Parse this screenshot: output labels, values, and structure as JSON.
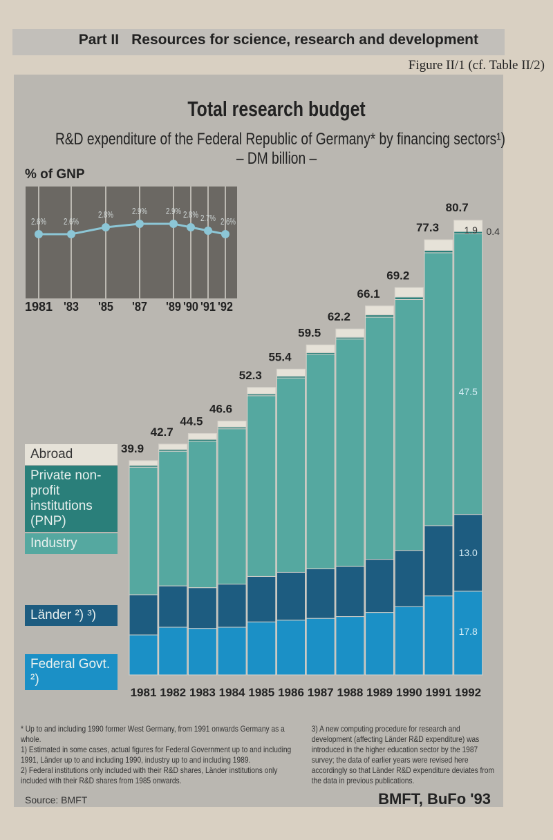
{
  "header": {
    "part": "Part II",
    "section": "Resources for science, research and development",
    "figure": "Figure II/1 (cf. Table II/2)"
  },
  "title": "Total research budget",
  "subtitle_line1": "R&D expenditure of the Federal Republic of Germany* by financing sectors¹)",
  "subtitle_line2": "– DM billion –",
  "colors": {
    "abroad": "#e6e2d8",
    "pnp": "#2a7f7a",
    "industry": "#55a8a0",
    "laender": "#1d5c80",
    "federal": "#1b90c6",
    "gnp_line": "#8cc6d6",
    "gnp_bg": "#6b6863"
  },
  "legend": {
    "abroad": "Abroad",
    "pnp": "Private non-profit institutions (PNP)",
    "industry": "Industry",
    "laender": "Länder ²) ³)",
    "federal": "Federal Govt. ²)"
  },
  "chart_data": [
    {
      "type": "line",
      "title": "% of GNP",
      "categories": [
        "1981",
        "'83",
        "'85",
        "'87",
        "'89",
        "'90",
        "'91",
        "'92"
      ],
      "values": [
        2.6,
        2.6,
        2.8,
        2.9,
        2.9,
        2.8,
        2.7,
        2.6
      ],
      "labels": [
        "2.6%",
        "2.6%",
        "2.8%",
        "2.9%",
        "2.9%",
        "2.8%",
        "2.7%",
        "2.6%"
      ]
    },
    {
      "type": "bar",
      "stacked": true,
      "categories": [
        "1981",
        "1982",
        "1983",
        "1984",
        "1985",
        "1986",
        "1987",
        "1988",
        "1989",
        "1990",
        "1991",
        "1992"
      ],
      "totals": [
        39.9,
        42.7,
        44.5,
        46.6,
        52.3,
        55.4,
        59.5,
        62.2,
        66.1,
        69.2,
        77.3,
        80.7
      ],
      "total_labels": [
        "39.9",
        "42.7",
        "44.5",
        "46.6",
        "52.3",
        "55.4",
        "59.5",
        "62.2",
        "66.1",
        "69.2",
        "77.3",
        "80.7"
      ],
      "series": [
        {
          "name": "Federal Govt. ²)",
          "key": "federal",
          "values": [
            10.4,
            11.7,
            11.5,
            11.7,
            12.6,
            12.9,
            13.2,
            13.5,
            14.2,
            15.2,
            17.0,
            17.8
          ]
        },
        {
          "name": "Länder ²) ³)",
          "key": "laender",
          "values": [
            6.8,
            7.0,
            6.9,
            7.3,
            7.7,
            8.1,
            8.4,
            8.5,
            9.0,
            9.5,
            11.9,
            13.0
          ]
        },
        {
          "name": "Industry",
          "key": "industry",
          "values": [
            21.6,
            22.8,
            24.8,
            26.3,
            30.6,
            32.9,
            36.3,
            38.5,
            41.0,
            42.5,
            46.2,
            47.5
          ]
        },
        {
          "name": "Private non-profit institutions (PNP)",
          "key": "pnp",
          "values": [
            0.3,
            0.3,
            0.3,
            0.3,
            0.3,
            0.3,
            0.3,
            0.3,
            0.4,
            0.4,
            0.4,
            0.4
          ]
        },
        {
          "name": "Abroad",
          "key": "abroad",
          "values": [
            0.8,
            0.9,
            1.0,
            1.0,
            1.1,
            1.2,
            1.3,
            1.4,
            1.5,
            1.6,
            1.8,
            1.9
          ]
        }
      ],
      "segment_labels_1992": {
        "federal": "17.8",
        "laender": "13.0",
        "industry": "47.5",
        "pnp": "0.4",
        "abroad": "1.9"
      }
    }
  ],
  "footnotes": {
    "star": "* Up to and including 1990 former West Germany, from 1991 onwards Germany as a whole.",
    "n1": "1) Estimated in some cases, actual figures for Federal Government up to and including 1991, Länder up to and including 1990, industry up to and including 1989.",
    "n2": "2) Federal institutions only included with their R&D shares, Länder institutions only included with their R&D shares from 1985 onwards.",
    "n3": "3) A new computing procedure for research and development (affecting Länder R&D expenditure) was introduced in the higher education sector by the 1987 survey; the data of earlier years were revised here accordingly so that Länder R&D expenditure deviates from the data in previous publications."
  },
  "source": "Source: BMFT",
  "credit": "BMFT, BuFo '93"
}
